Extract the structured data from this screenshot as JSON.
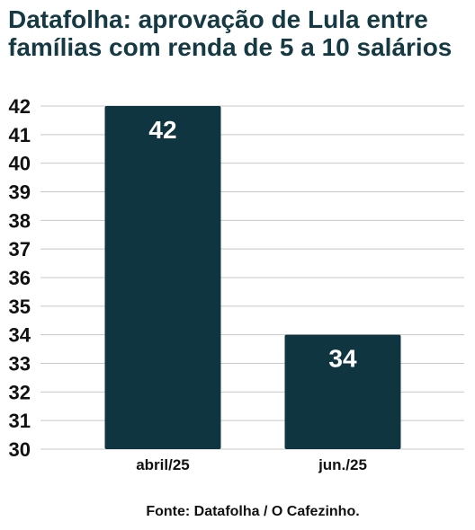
{
  "title": "Datafolha: aprovação de Lula entre famílias com renda de 5 a 10 salários",
  "source": "Fonte: Datafolha / O Cafezinho.",
  "colors": {
    "bar": "#0f3640",
    "title": "#163a43",
    "grid": "#c8c8c8",
    "bar_label": "#ffffff"
  },
  "chart_data": {
    "type": "bar",
    "title": "Datafolha: aprovação de Lula entre famílias com renda de 5 a 10 salários",
    "categories": [
      "abril/25",
      "jun./25"
    ],
    "values": [
      42,
      34
    ],
    "data_labels": [
      "42",
      "34"
    ],
    "xlabel": "",
    "ylabel": "",
    "ylim": [
      30,
      42
    ],
    "yticks": [
      30,
      31,
      32,
      33,
      34,
      35,
      36,
      37,
      38,
      39,
      40,
      41,
      42
    ],
    "grid": true,
    "legend": "none"
  }
}
